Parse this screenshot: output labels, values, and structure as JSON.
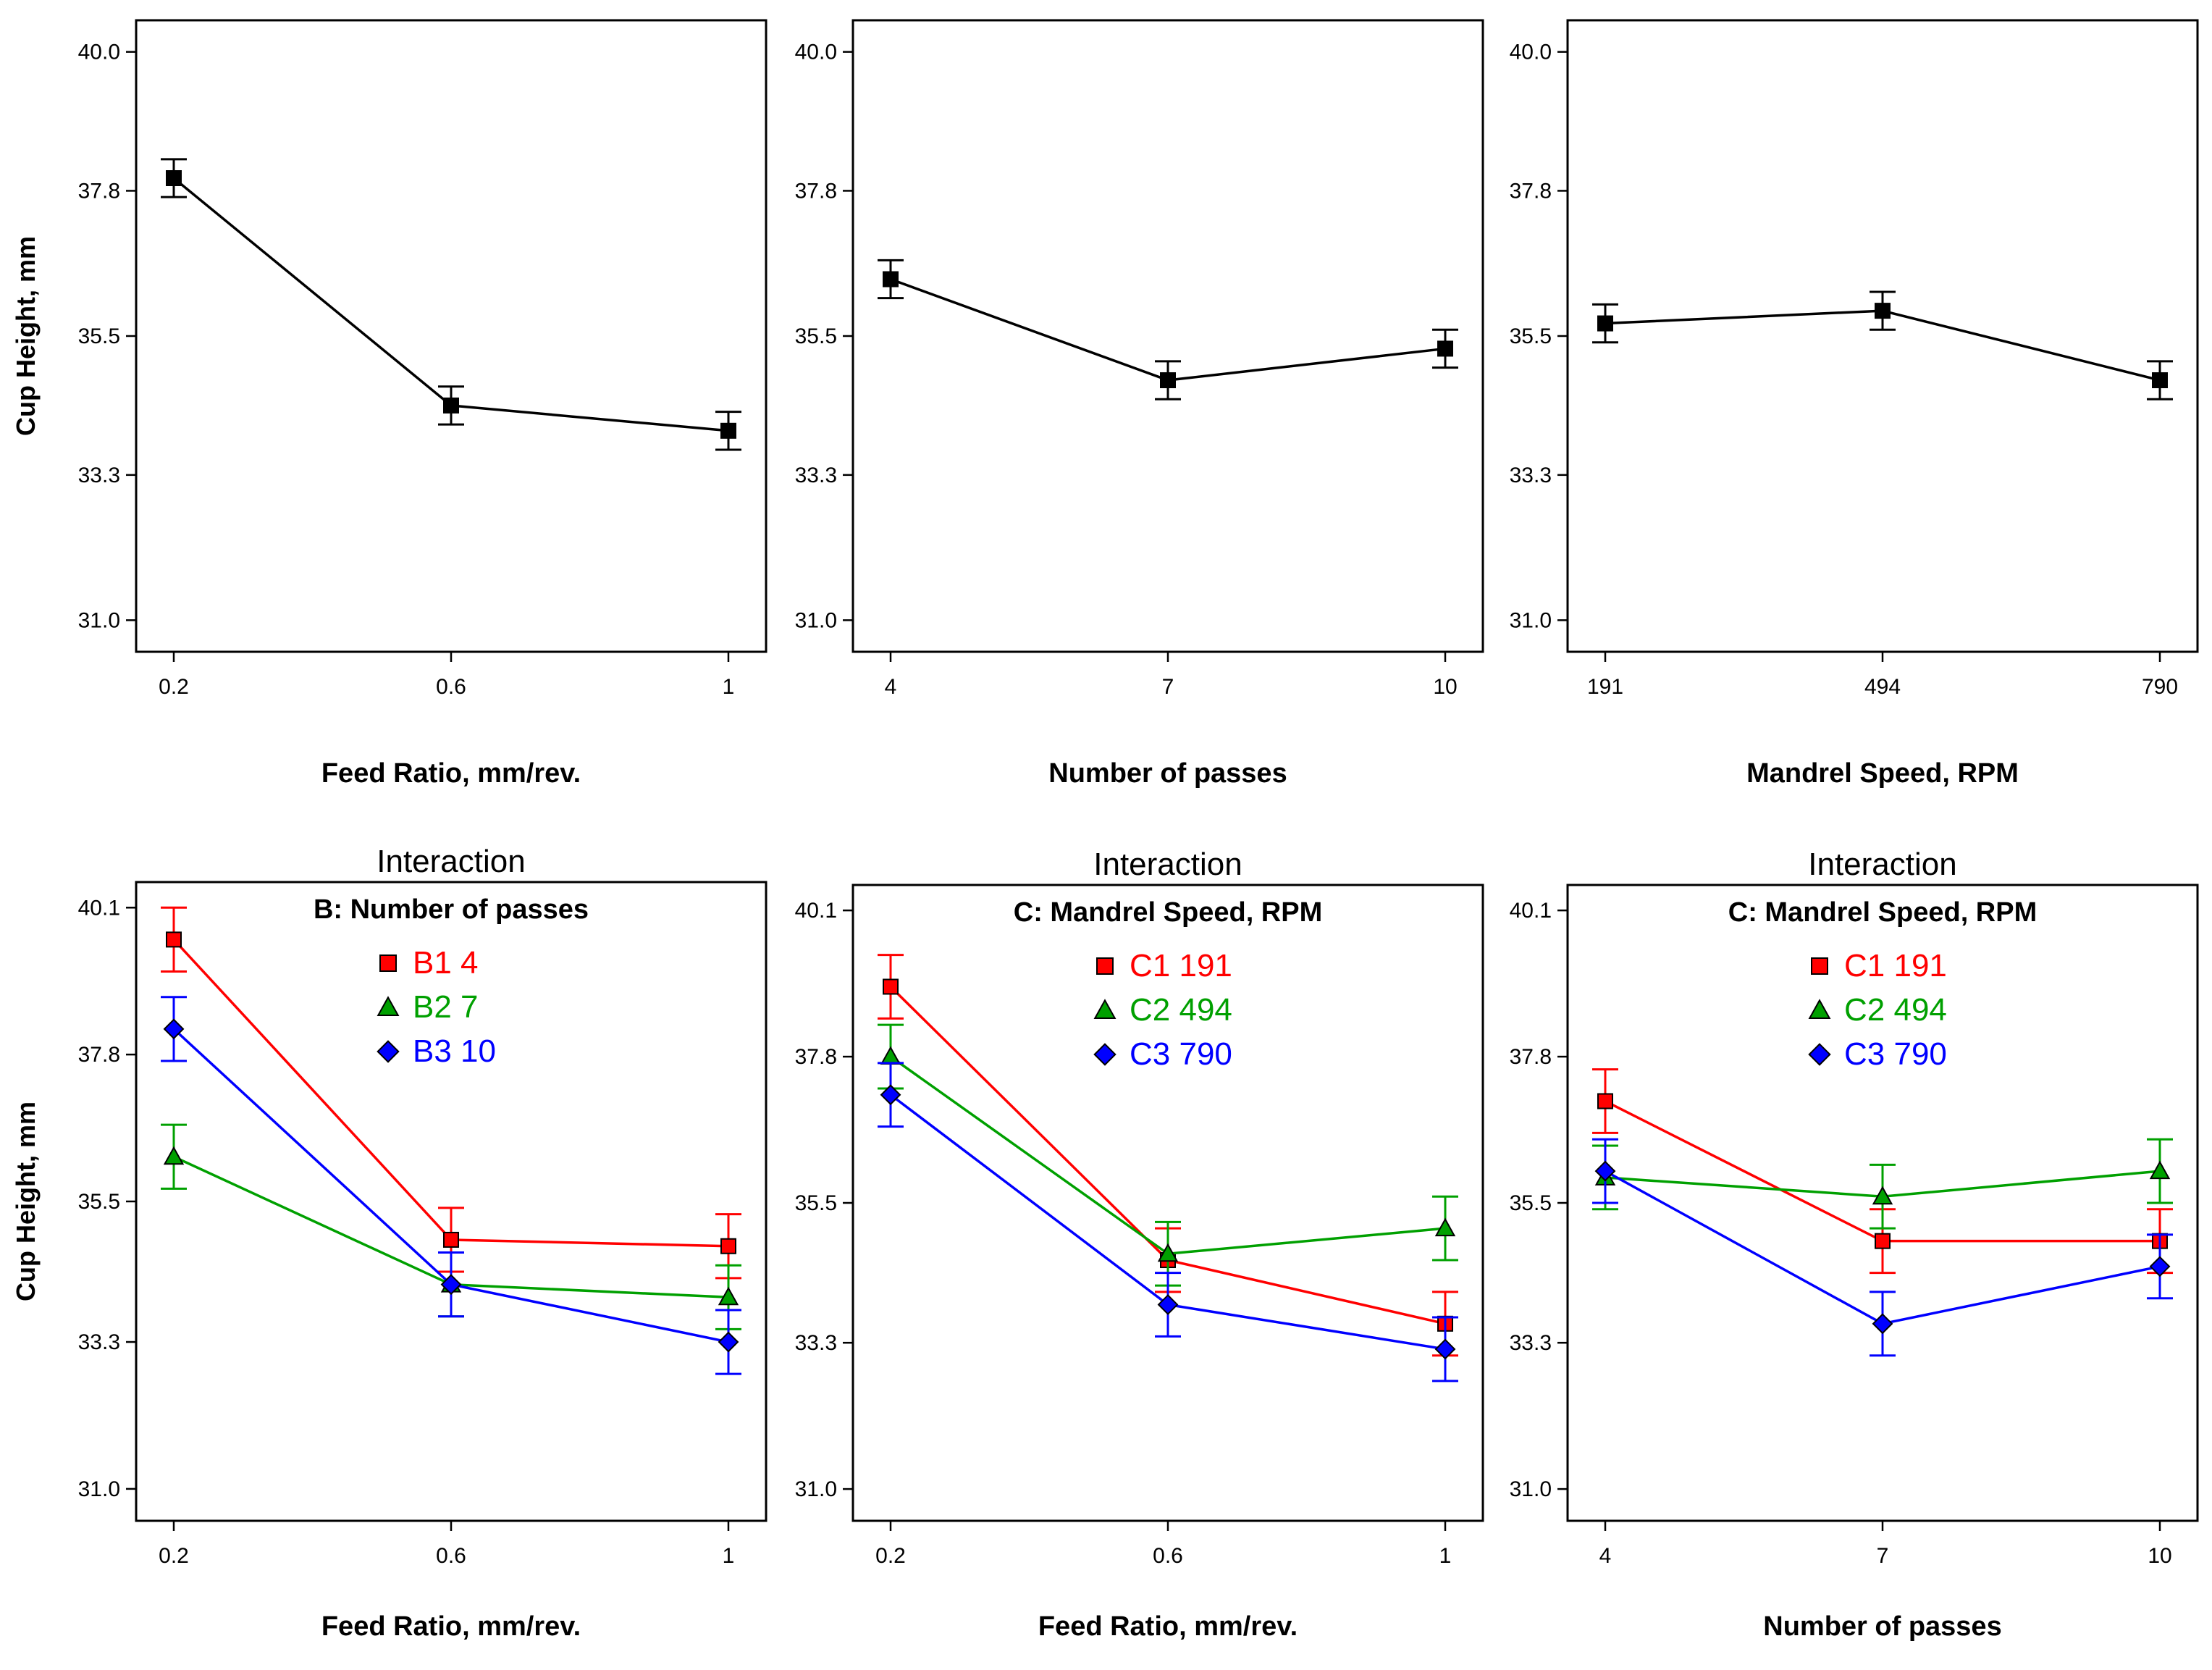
{
  "chart_data": [
    {
      "type": "line",
      "panel": "main-effect-feed-ratio",
      "title": "",
      "subtitle": "",
      "xlabel": "Feed Ratio, mm/rev.",
      "ylabel": "Cup Height, mm",
      "categories": [
        "0.2",
        "0.6",
        "1"
      ],
      "yticks": [
        "31.0",
        "33.3",
        "35.5",
        "37.8",
        "40.0"
      ],
      "ylim": [
        30.5,
        40.5
      ],
      "series": [
        {
          "name": "Cup Height",
          "color": "#000000",
          "marker": "square",
          "values": [
            38.0,
            34.4,
            34.0
          ],
          "err": [
            0.3,
            0.3,
            0.3
          ]
        }
      ]
    },
    {
      "type": "line",
      "panel": "main-effect-number-of-passes",
      "title": "",
      "subtitle": "",
      "xlabel": "Number of passes",
      "ylabel": "",
      "categories": [
        "4",
        "7",
        "10"
      ],
      "yticks": [
        "31.0",
        "33.3",
        "35.5",
        "37.8",
        "40.0"
      ],
      "ylim": [
        30.5,
        40.5
      ],
      "series": [
        {
          "name": "Cup Height",
          "color": "#000000",
          "marker": "square",
          "values": [
            36.4,
            34.8,
            35.3
          ],
          "err": [
            0.3,
            0.3,
            0.3
          ]
        }
      ]
    },
    {
      "type": "line",
      "panel": "main-effect-mandrel-speed",
      "title": "",
      "subtitle": "",
      "xlabel": "Mandrel Speed, RPM",
      "ylabel": "",
      "categories": [
        "191",
        "494",
        "790"
      ],
      "yticks": [
        "31.0",
        "33.3",
        "35.5",
        "37.8",
        "40.0"
      ],
      "ylim": [
        30.5,
        40.5
      ],
      "series": [
        {
          "name": "Cup Height",
          "color": "#000000",
          "marker": "square",
          "values": [
            35.7,
            35.9,
            34.8
          ],
          "err": [
            0.3,
            0.3,
            0.3
          ]
        }
      ]
    },
    {
      "type": "line",
      "panel": "interaction-feed-ratio-passes",
      "title": "Interaction",
      "subtitle": "B: Number of passes",
      "xlabel": "Feed Ratio, mm/rev.",
      "ylabel": "Cup Height, mm",
      "categories": [
        "0.2",
        "0.6",
        "1"
      ],
      "yticks": [
        "31.0",
        "33.3",
        "35.5",
        "37.8",
        "40.1"
      ],
      "ylim": [
        30.5,
        40.5
      ],
      "series": [
        {
          "name": "B1 4",
          "color": "#ff0000",
          "marker": "square",
          "values": [
            39.6,
            34.9,
            34.8
          ],
          "err": [
            0.5,
            0.5,
            0.5
          ]
        },
        {
          "name": "B2 7",
          "color": "#00a000",
          "marker": "triangle",
          "values": [
            36.2,
            34.2,
            34.0
          ],
          "err": [
            0.5,
            0.5,
            0.5
          ]
        },
        {
          "name": "B3 10",
          "color": "#0000ff",
          "marker": "diamond",
          "values": [
            38.2,
            34.2,
            33.3
          ],
          "err": [
            0.5,
            0.5,
            0.5
          ]
        }
      ]
    },
    {
      "type": "line",
      "panel": "interaction-feed-ratio-mandrel-speed",
      "title": "Interaction",
      "subtitle": "C: Mandrel Speed, RPM",
      "xlabel": "Feed Ratio, mm/rev.",
      "ylabel": "",
      "categories": [
        "0.2",
        "0.6",
        "1"
      ],
      "yticks": [
        "31.0",
        "33.3",
        "35.5",
        "37.8",
        "40.1"
      ],
      "ylim": [
        30.5,
        40.5
      ],
      "series": [
        {
          "name": "C1 191",
          "color": "#ff0000",
          "marker": "square",
          "values": [
            38.9,
            34.6,
            33.6
          ],
          "err": [
            0.5,
            0.5,
            0.5
          ]
        },
        {
          "name": "C2 494",
          "color": "#00a000",
          "marker": "triangle",
          "values": [
            37.8,
            34.7,
            35.1
          ],
          "err": [
            0.5,
            0.5,
            0.5
          ]
        },
        {
          "name": "C3 790",
          "color": "#0000ff",
          "marker": "diamond",
          "values": [
            37.2,
            33.9,
            33.2
          ],
          "err": [
            0.5,
            0.5,
            0.5
          ]
        }
      ]
    },
    {
      "type": "line",
      "panel": "interaction-passes-mandrel-speed",
      "title": "Interaction",
      "subtitle": "C: Mandrel Speed, RPM",
      "xlabel": "Number of passes",
      "ylabel": "",
      "categories": [
        "4",
        "7",
        "10"
      ],
      "yticks": [
        "31.0",
        "33.3",
        "35.5",
        "37.8",
        "40.1"
      ],
      "ylim": [
        30.5,
        40.5
      ],
      "series": [
        {
          "name": "C1 191",
          "color": "#ff0000",
          "marker": "square",
          "values": [
            37.1,
            34.9,
            34.9
          ],
          "err": [
            0.5,
            0.5,
            0.5
          ]
        },
        {
          "name": "C2 494",
          "color": "#00a000",
          "marker": "triangle",
          "values": [
            35.9,
            35.6,
            36.0
          ],
          "err": [
            0.5,
            0.5,
            0.5
          ]
        },
        {
          "name": "C3 790",
          "color": "#0000ff",
          "marker": "diamond",
          "values": [
            36.0,
            33.6,
            34.5
          ],
          "err": [
            0.5,
            0.5,
            0.5
          ]
        }
      ]
    }
  ]
}
